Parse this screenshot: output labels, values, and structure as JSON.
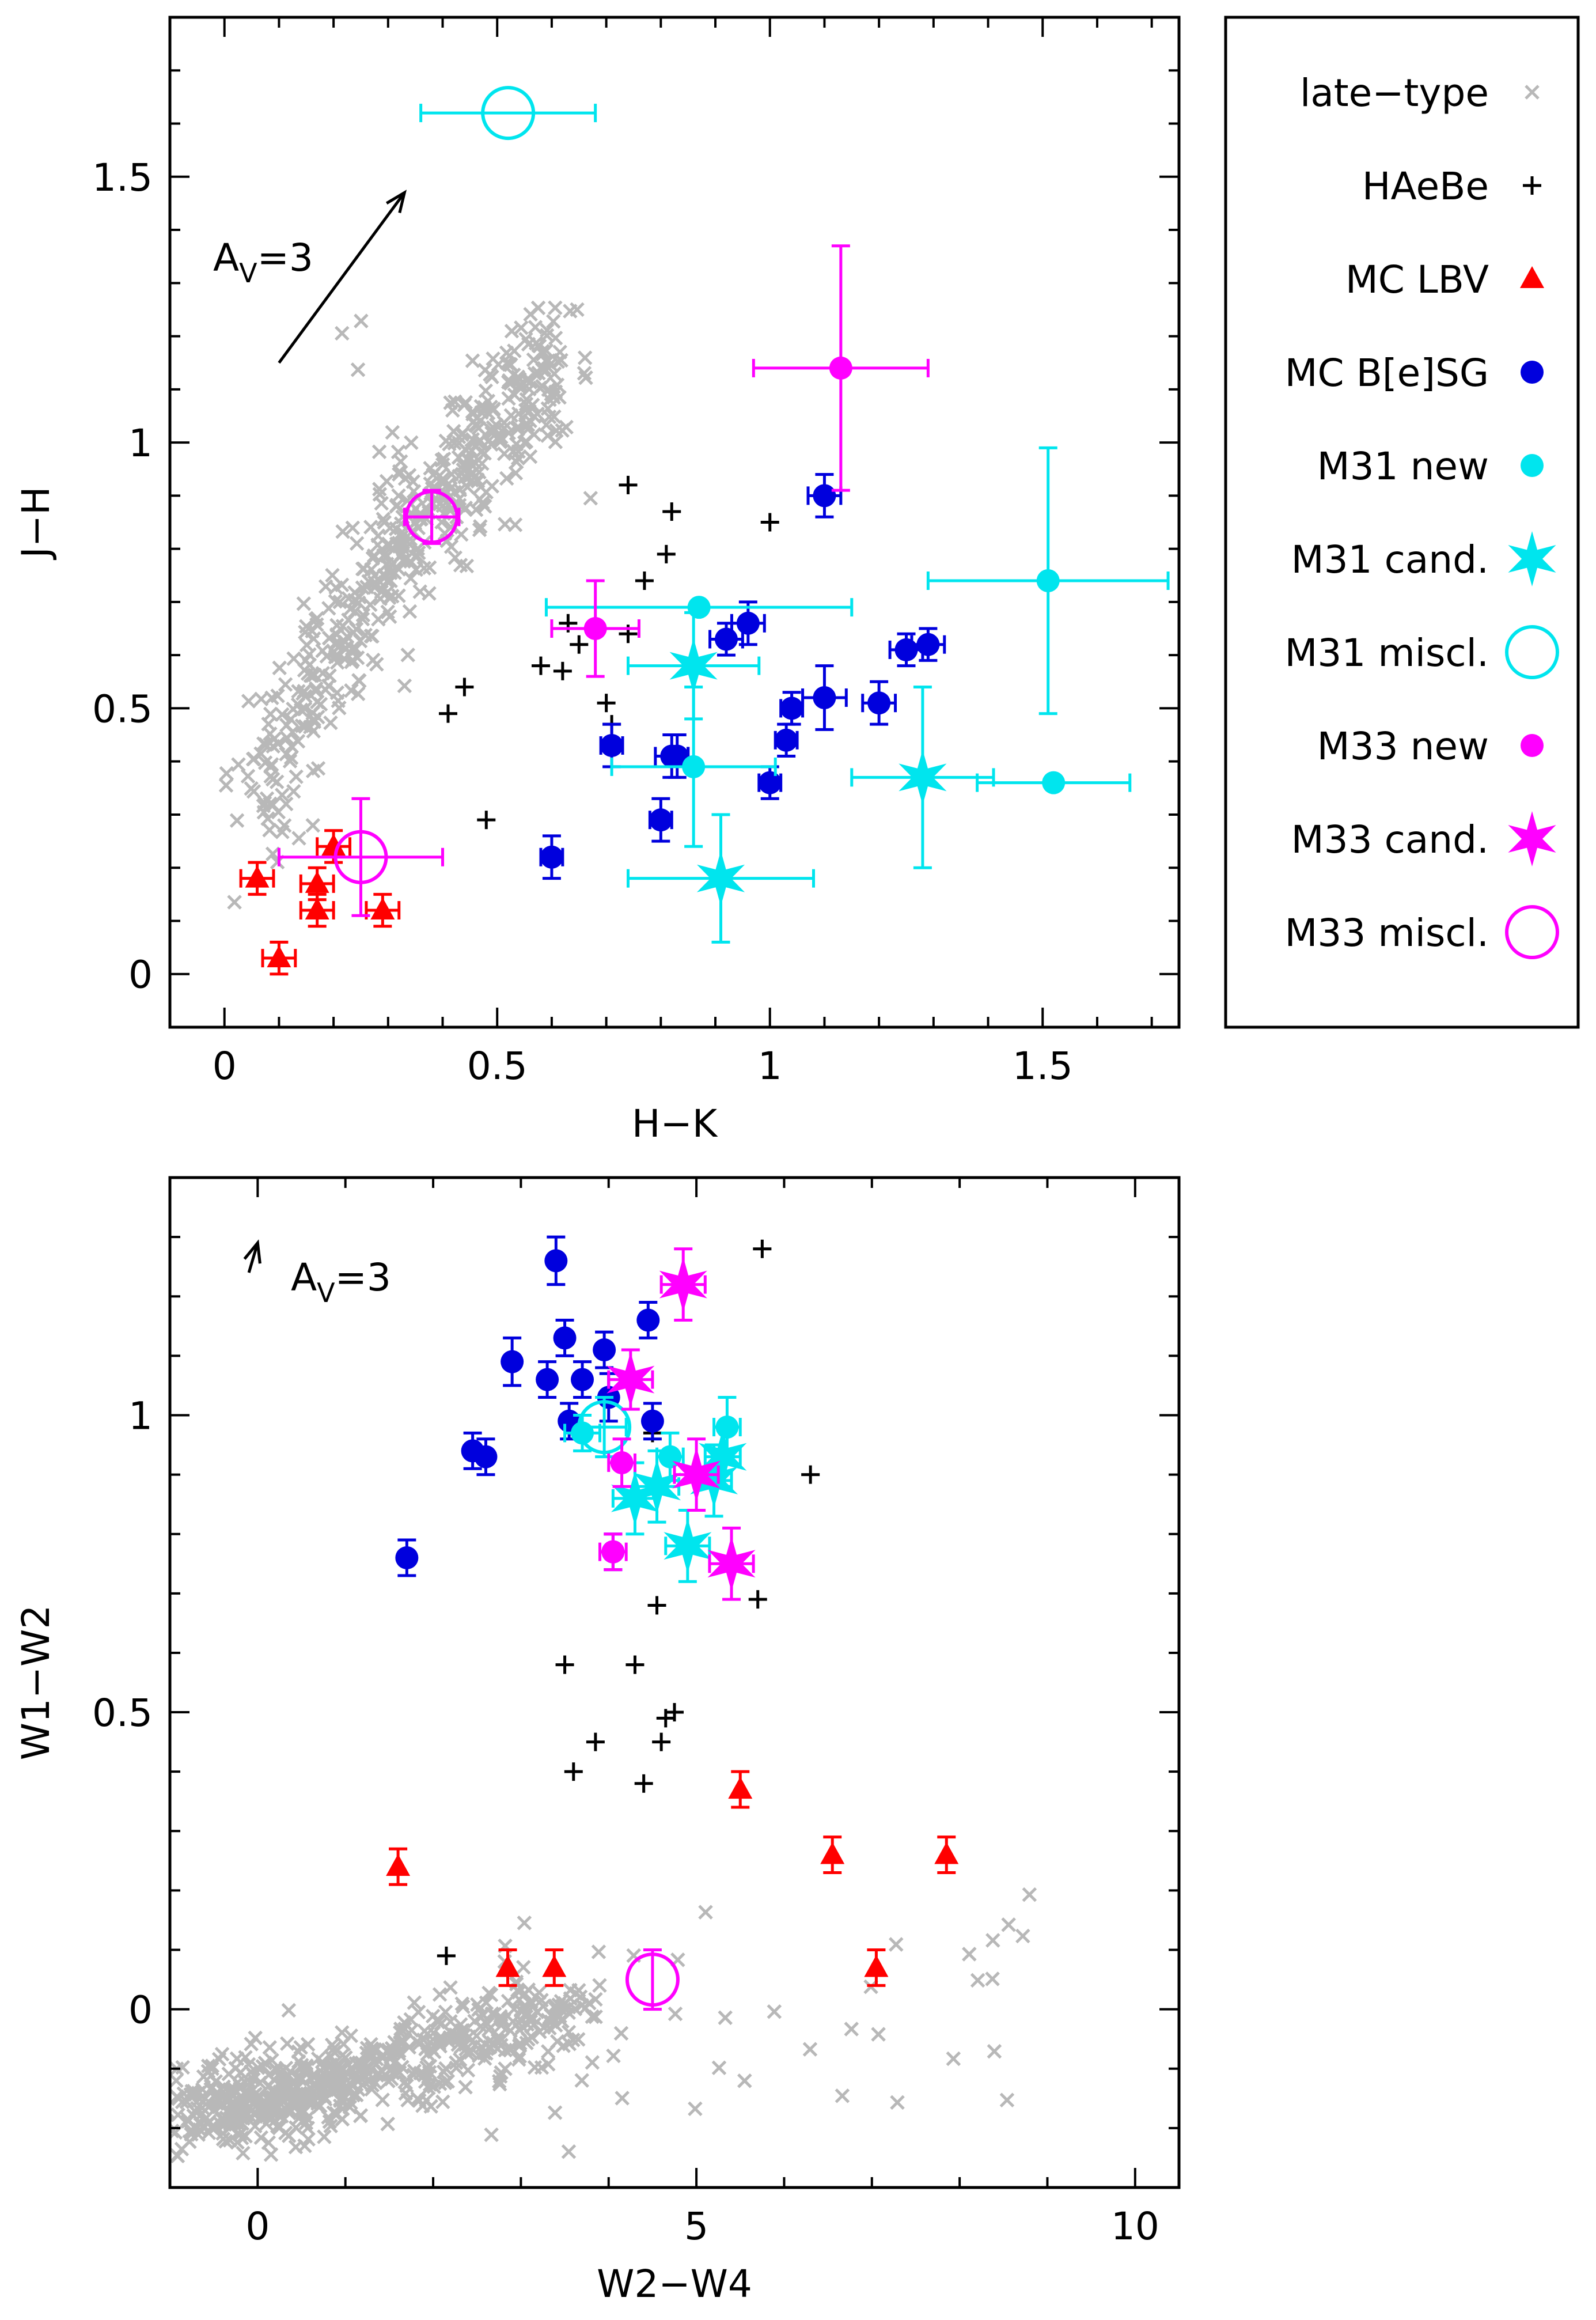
{
  "chart_data": [
    {
      "type": "scatter",
      "id": "top",
      "title": "",
      "xlabel": "H−K",
      "ylabel": "J−H",
      "xlim": [
        -0.1,
        1.75
      ],
      "ylim": [
        -0.1,
        1.8
      ],
      "xticks": [
        0,
        0.5,
        1,
        1.5
      ],
      "xtick_labels": [
        "0",
        "0.5",
        "1",
        "1.5"
      ],
      "yticks": [
        0,
        0.5,
        1,
        1.5
      ],
      "ytick_labels": [
        "0",
        "0.5",
        "1",
        "1.5"
      ],
      "reddening_vector": {
        "label_main": "A",
        "label_sub": "V",
        "label_value": "=3",
        "from": [
          0.1,
          1.15
        ],
        "to": [
          0.33,
          1.47
        ]
      },
      "late_type_band": {
        "x_start": 0.06,
        "x_end": 0.6,
        "y_start": 0.27,
        "y_end": 1.15,
        "count": 500
      },
      "series": [
        {
          "name": "HAeBe",
          "marker": "plus",
          "color": "#000000",
          "points": [
            [
              0.41,
              0.49
            ],
            [
              0.44,
              0.54
            ],
            [
              0.48,
              0.29
            ],
            [
              0.58,
              0.58
            ],
            [
              0.62,
              0.57
            ],
            [
              0.63,
              0.66
            ],
            [
              0.65,
              0.62
            ],
            [
              0.7,
              0.51
            ],
            [
              0.74,
              0.64
            ],
            [
              0.71,
              0.47
            ],
            [
              0.74,
              0.92
            ],
            [
              0.77,
              0.74
            ],
            [
              0.81,
              0.79
            ],
            [
              0.82,
              0.87
            ],
            [
              1.0,
              0.85
            ]
          ]
        },
        {
          "name": "MC LBV",
          "marker": "triangle",
          "color": "#ff0000",
          "points": [
            [
              0.06,
              0.18,
              0.03,
              0.03
            ],
            [
              0.1,
              0.03,
              0.03,
              0.03
            ],
            [
              0.17,
              0.12,
              0.03,
              0.03
            ],
            [
              0.17,
              0.17,
              0.03,
              0.03
            ],
            [
              0.2,
              0.24,
              0.03,
              0.03
            ],
            [
              0.29,
              0.12,
              0.03,
              0.03
            ]
          ]
        },
        {
          "name": "MC B[e]SG",
          "marker": "dot",
          "color": "#0000dd",
          "points": [
            [
              0.6,
              0.22,
              0.02,
              0.04
            ],
            [
              0.71,
              0.43,
              0.02,
              0.04
            ],
            [
              0.8,
              0.29,
              0.02,
              0.04
            ],
            [
              0.82,
              0.41,
              0.03,
              0.04
            ],
            [
              0.83,
              0.41,
              0.02,
              0.04
            ],
            [
              0.92,
              0.63,
              0.03,
              0.03
            ],
            [
              0.96,
              0.66,
              0.03,
              0.04
            ],
            [
              1.0,
              0.36,
              0.02,
              0.03
            ],
            [
              1.03,
              0.44,
              0.02,
              0.03
            ],
            [
              1.04,
              0.5,
              0.02,
              0.03
            ],
            [
              1.1,
              0.52,
              0.04,
              0.06
            ],
            [
              1.1,
              0.9,
              0.03,
              0.04
            ],
            [
              1.2,
              0.51,
              0.03,
              0.04
            ],
            [
              1.25,
              0.61,
              0.03,
              0.03
            ],
            [
              1.29,
              0.62,
              0.03,
              0.03
            ]
          ]
        },
        {
          "name": "M31 new",
          "marker": "dot",
          "color": "#00e5ee",
          "points": [
            [
              0.87,
              0.69,
              0.28,
              0.0
            ],
            [
              0.86,
              0.39,
              0.15,
              0.15
            ],
            [
              1.51,
              0.74,
              0.22,
              0.25
            ],
            [
              1.52,
              0.36,
              0.14,
              0.0
            ]
          ]
        },
        {
          "name": "M31 cand.",
          "marker": "star",
          "color": "#00e5ee",
          "points": [
            [
              0.86,
              0.58,
              0.12,
              0.1
            ],
            [
              0.91,
              0.18,
              0.17,
              0.12
            ],
            [
              1.28,
              0.37,
              0.13,
              0.17
            ]
          ]
        },
        {
          "name": "M31 miscl.",
          "marker": "circle",
          "color": "#00e5ee",
          "points": [
            [
              0.52,
              1.62,
              0.16,
              0.0
            ]
          ]
        },
        {
          "name": "M33 new",
          "marker": "dot",
          "color": "#ff00ff",
          "points": [
            [
              0.68,
              0.65,
              0.08,
              0.09
            ],
            [
              1.13,
              1.14,
              0.16,
              0.23
            ]
          ]
        },
        {
          "name": "M33 cand.",
          "marker": "star",
          "color": "#ff00ff",
          "points": []
        },
        {
          "name": "M33 miscl.",
          "marker": "circle",
          "color": "#ff00ff",
          "points": [
            [
              0.38,
              0.86,
              0.05,
              0.05
            ],
            [
              0.25,
              0.22,
              0.15,
              0.11
            ]
          ]
        }
      ]
    },
    {
      "type": "scatter",
      "id": "bottom",
      "title": "",
      "xlabel": "W2−W4",
      "ylabel": "W1−W2",
      "xlim": [
        -1.0,
        10.5
      ],
      "ylim": [
        -0.3,
        1.4
      ],
      "xticks": [
        0,
        5,
        10
      ],
      "xtick_labels": [
        "0",
        "5",
        "10"
      ],
      "yticks": [
        0,
        0.5,
        1
      ],
      "ytick_labels": [
        "0",
        "0.5",
        "1"
      ],
      "reddening_vector": {
        "label_main": "A",
        "label_sub": "V",
        "label_value": "=3",
        "from": [
          -0.1,
          1.24
        ],
        "to": [
          0.0,
          1.29
        ]
      },
      "late_type_band": {
        "x_start": -0.5,
        "x_end": 3.5,
        "y_start": -0.18,
        "y_end": 0.0,
        "count": 650
      },
      "series": [
        {
          "name": "HAeBe",
          "marker": "plus",
          "color": "#000000",
          "points": [
            [
              2.15,
              0.09
            ],
            [
              3.5,
              0.58
            ],
            [
              3.6,
              0.4
            ],
            [
              3.85,
              0.45
            ],
            [
              4.3,
              0.58
            ],
            [
              4.4,
              0.38
            ],
            [
              4.5,
              0.97
            ],
            [
              4.55,
              0.68
            ],
            [
              4.6,
              0.45
            ],
            [
              4.65,
              0.49
            ],
            [
              4.75,
              0.5
            ],
            [
              5.7,
              0.69
            ],
            [
              5.75,
              1.28
            ],
            [
              6.3,
              0.9
            ]
          ]
        },
        {
          "name": "MC LBV",
          "marker": "triangle",
          "color": "#ff0000",
          "points": [
            [
              1.6,
              0.24,
              0.0,
              0.03
            ],
            [
              2.85,
              0.07,
              0.0,
              0.03
            ],
            [
              3.38,
              0.07,
              0.0,
              0.03
            ],
            [
              5.5,
              0.37,
              0.0,
              0.03
            ],
            [
              6.55,
              0.26,
              0.0,
              0.03
            ],
            [
              7.05,
              0.07,
              0.0,
              0.03
            ],
            [
              7.85,
              0.26,
              0.0,
              0.03
            ]
          ]
        },
        {
          "name": "MC B[e]SG",
          "marker": "dot",
          "color": "#0000dd",
          "points": [
            [
              1.7,
              0.76,
              0.0,
              0.03
            ],
            [
              2.45,
              0.94,
              0.0,
              0.03
            ],
            [
              2.6,
              0.93,
              0.0,
              0.03
            ],
            [
              2.9,
              1.09,
              0.0,
              0.04
            ],
            [
              3.3,
              1.06,
              0.0,
              0.03
            ],
            [
              3.4,
              1.26,
              0.0,
              0.04
            ],
            [
              3.5,
              1.13,
              0.0,
              0.03
            ],
            [
              3.55,
              0.99,
              0.0,
              0.03
            ],
            [
              3.7,
              1.06,
              0.0,
              0.03
            ],
            [
              3.95,
              1.11,
              0.0,
              0.03
            ],
            [
              4.0,
              1.03,
              0.0,
              0.04
            ],
            [
              4.05,
              0.77,
              0.0,
              0.03
            ],
            [
              4.45,
              1.16,
              0.0,
              0.03
            ],
            [
              4.5,
              0.99,
              0.0,
              0.03
            ]
          ]
        },
        {
          "name": "M31 new",
          "marker": "dot",
          "color": "#00e5ee",
          "points": [
            [
              3.7,
              0.97,
              0.2,
              0.03
            ],
            [
              4.7,
              0.93,
              0.15,
              0.04
            ],
            [
              5.35,
              0.98,
              0.15,
              0.05
            ]
          ]
        },
        {
          "name": "M31 cand.",
          "marker": "star",
          "color": "#00e5ee",
          "points": [
            [
              4.3,
              0.86,
              0.25,
              0.06
            ],
            [
              4.55,
              0.88,
              0.25,
              0.06
            ],
            [
              4.9,
              0.78,
              0.25,
              0.06
            ],
            [
              5.2,
              0.89,
              0.2,
              0.06
            ],
            [
              5.3,
              0.93,
              0.2,
              0.05
            ]
          ]
        },
        {
          "name": "M31 miscl.",
          "marker": "circle",
          "color": "#00e5ee",
          "points": [
            [
              3.95,
              0.98,
              0.25,
              0.05
            ]
          ]
        },
        {
          "name": "M33 new",
          "marker": "dot",
          "color": "#ff00ff",
          "points": [
            [
              4.05,
              0.77,
              0.15,
              0.03
            ],
            [
              4.15,
              0.92,
              0.15,
              0.04
            ]
          ]
        },
        {
          "name": "M33 cand.",
          "marker": "star",
          "color": "#ff00ff",
          "points": [
            [
              4.25,
              1.06,
              0.25,
              0.05
            ],
            [
              4.85,
              1.22,
              0.25,
              0.06
            ],
            [
              5.0,
              0.9,
              0.25,
              0.06
            ],
            [
              5.4,
              0.75,
              0.25,
              0.06
            ]
          ]
        },
        {
          "name": "M33 miscl.",
          "marker": "circle",
          "color": "#ff00ff",
          "points": [
            [
              4.5,
              0.05,
              0.0,
              0.05
            ]
          ]
        }
      ]
    }
  ],
  "legend": {
    "placement": "right of top panel",
    "entries": [
      {
        "label": "late−type",
        "marker": "cross",
        "color": "#b8b8b8"
      },
      {
        "label": "HAeBe",
        "marker": "plus",
        "color": "#000000"
      },
      {
        "label": "MC LBV",
        "marker": "triangle",
        "color": "#ff0000"
      },
      {
        "label": "MC B[e]SG",
        "marker": "dot",
        "color": "#0000dd"
      },
      {
        "label": "M31 new",
        "marker": "dot",
        "color": "#00e5ee"
      },
      {
        "label": "M31 cand.",
        "marker": "star",
        "color": "#00e5ee"
      },
      {
        "label": "M31 miscl.",
        "marker": "circle",
        "color": "#00e5ee"
      },
      {
        "label": "M33 new",
        "marker": "dot",
        "color": "#ff00ff"
      },
      {
        "label": "M33 cand.",
        "marker": "star",
        "color": "#ff00ff"
      },
      {
        "label": "M33 miscl.",
        "marker": "circle",
        "color": "#ff00ff"
      }
    ]
  },
  "colors": {
    "late_type": "#b8b8b8",
    "axis": "#000000"
  }
}
